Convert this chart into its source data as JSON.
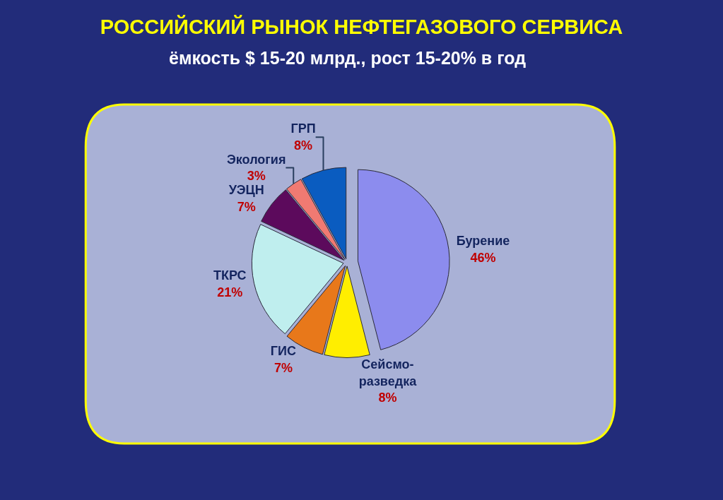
{
  "chart_data": {
    "type": "pie",
    "title": "РОССИЙСКИЙ РЫНОК НЕФТЕГАЗОВОГО СЕРВИСА",
    "subtitle": "ёмкость $ 15-20 млрд., рост 15-20% в год",
    "categories": [
      "Бурение",
      "Сейсмо-разведка",
      "ГИС",
      "ТКРС",
      "УЭЦН",
      "Экология",
      "ГРП"
    ],
    "values": [
      46,
      8,
      7,
      21,
      7,
      3,
      8
    ],
    "colors": [
      "#8c8cee",
      "#ffee00",
      "#e8781a",
      "#bfeeee",
      "#5c0a5c",
      "#f07a72",
      "#0a5cc0"
    ],
    "value_labels": [
      "46%",
      "8%",
      "7%",
      "21%",
      "7%",
      "3%",
      "8%"
    ],
    "legend": false
  }
}
